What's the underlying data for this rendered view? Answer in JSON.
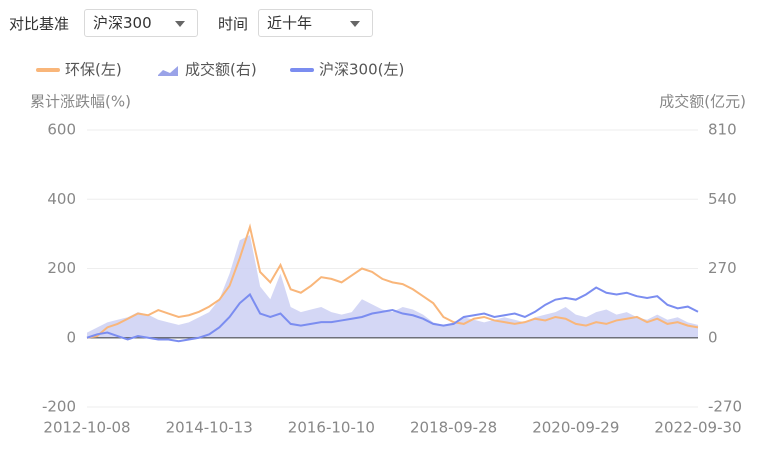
{
  "controls": [
    {
      "label": "对比基准",
      "value": "沪深300"
    },
    {
      "label": "时间",
      "value": "近十年"
    }
  ],
  "chart_data": {
    "type": "line",
    "y_label": "累计涨跌幅(%)",
    "y2_label": "成交额(亿元)",
    "categories": [
      "2012-10-08",
      null,
      null,
      null,
      null,
      null,
      null,
      null,
      null,
      null,
      null,
      null,
      "2014-10-13",
      null,
      null,
      null,
      null,
      null,
      null,
      null,
      null,
      null,
      null,
      null,
      "2016-10-10",
      null,
      null,
      null,
      null,
      null,
      null,
      null,
      null,
      null,
      null,
      null,
      "2018-09-28",
      null,
      null,
      null,
      null,
      null,
      null,
      null,
      null,
      null,
      null,
      null,
      "2020-09-29",
      null,
      null,
      null,
      null,
      null,
      null,
      null,
      null,
      null,
      null,
      null,
      "2022-09-30"
    ],
    "series": [
      {
        "name": "环保(左)",
        "type": "line",
        "color": "#f9b67a",
        "values": [
          0,
          5,
          30,
          40,
          55,
          70,
          65,
          80,
          70,
          60,
          65,
          75,
          90,
          110,
          150,
          230,
          320,
          190,
          160,
          210,
          140,
          130,
          150,
          175,
          170,
          160,
          180,
          200,
          190,
          170,
          160,
          155,
          140,
          120,
          100,
          60,
          45,
          40,
          55,
          60,
          50,
          45,
          40,
          45,
          55,
          50,
          60,
          55,
          40,
          35,
          45,
          40,
          50,
          55,
          60,
          45,
          55,
          40,
          45,
          35,
          30
        ]
      },
      {
        "name": "成交额(右)",
        "type": "area",
        "axis": "y2",
        "color": "#c9cdf3",
        "values": [
          20,
          40,
          60,
          70,
          80,
          100,
          90,
          70,
          60,
          50,
          60,
          80,
          100,
          150,
          250,
          380,
          400,
          200,
          150,
          250,
          120,
          100,
          110,
          120,
          100,
          90,
          100,
          150,
          130,
          110,
          100,
          120,
          110,
          90,
          60,
          50,
          60,
          80,
          70,
          60,
          70,
          80,
          70,
          60,
          80,
          90,
          100,
          120,
          90,
          80,
          100,
          110,
          90,
          100,
          80,
          70,
          90,
          70,
          80,
          60,
          50
        ]
      },
      {
        "name": "沪深300(左)",
        "type": "line",
        "color": "#7b8df0",
        "values": [
          0,
          10,
          15,
          5,
          -5,
          5,
          0,
          -5,
          -5,
          -10,
          -5,
          0,
          10,
          30,
          60,
          100,
          125,
          70,
          60,
          70,
          40,
          35,
          40,
          45,
          45,
          50,
          55,
          60,
          70,
          75,
          80,
          70,
          65,
          55,
          40,
          35,
          40,
          60,
          65,
          70,
          60,
          65,
          70,
          60,
          75,
          95,
          110,
          115,
          110,
          125,
          145,
          130,
          125,
          130,
          120,
          115,
          120,
          95,
          85,
          90,
          75
        ]
      }
    ],
    "ylim": [
      -200,
      600
    ],
    "yticks": [
      -200,
      0,
      200,
      400,
      600
    ],
    "y2lim": [
      -270,
      810
    ],
    "y2ticks": [
      -270,
      0,
      270,
      540,
      810
    ],
    "grid": true,
    "legend": "top"
  }
}
